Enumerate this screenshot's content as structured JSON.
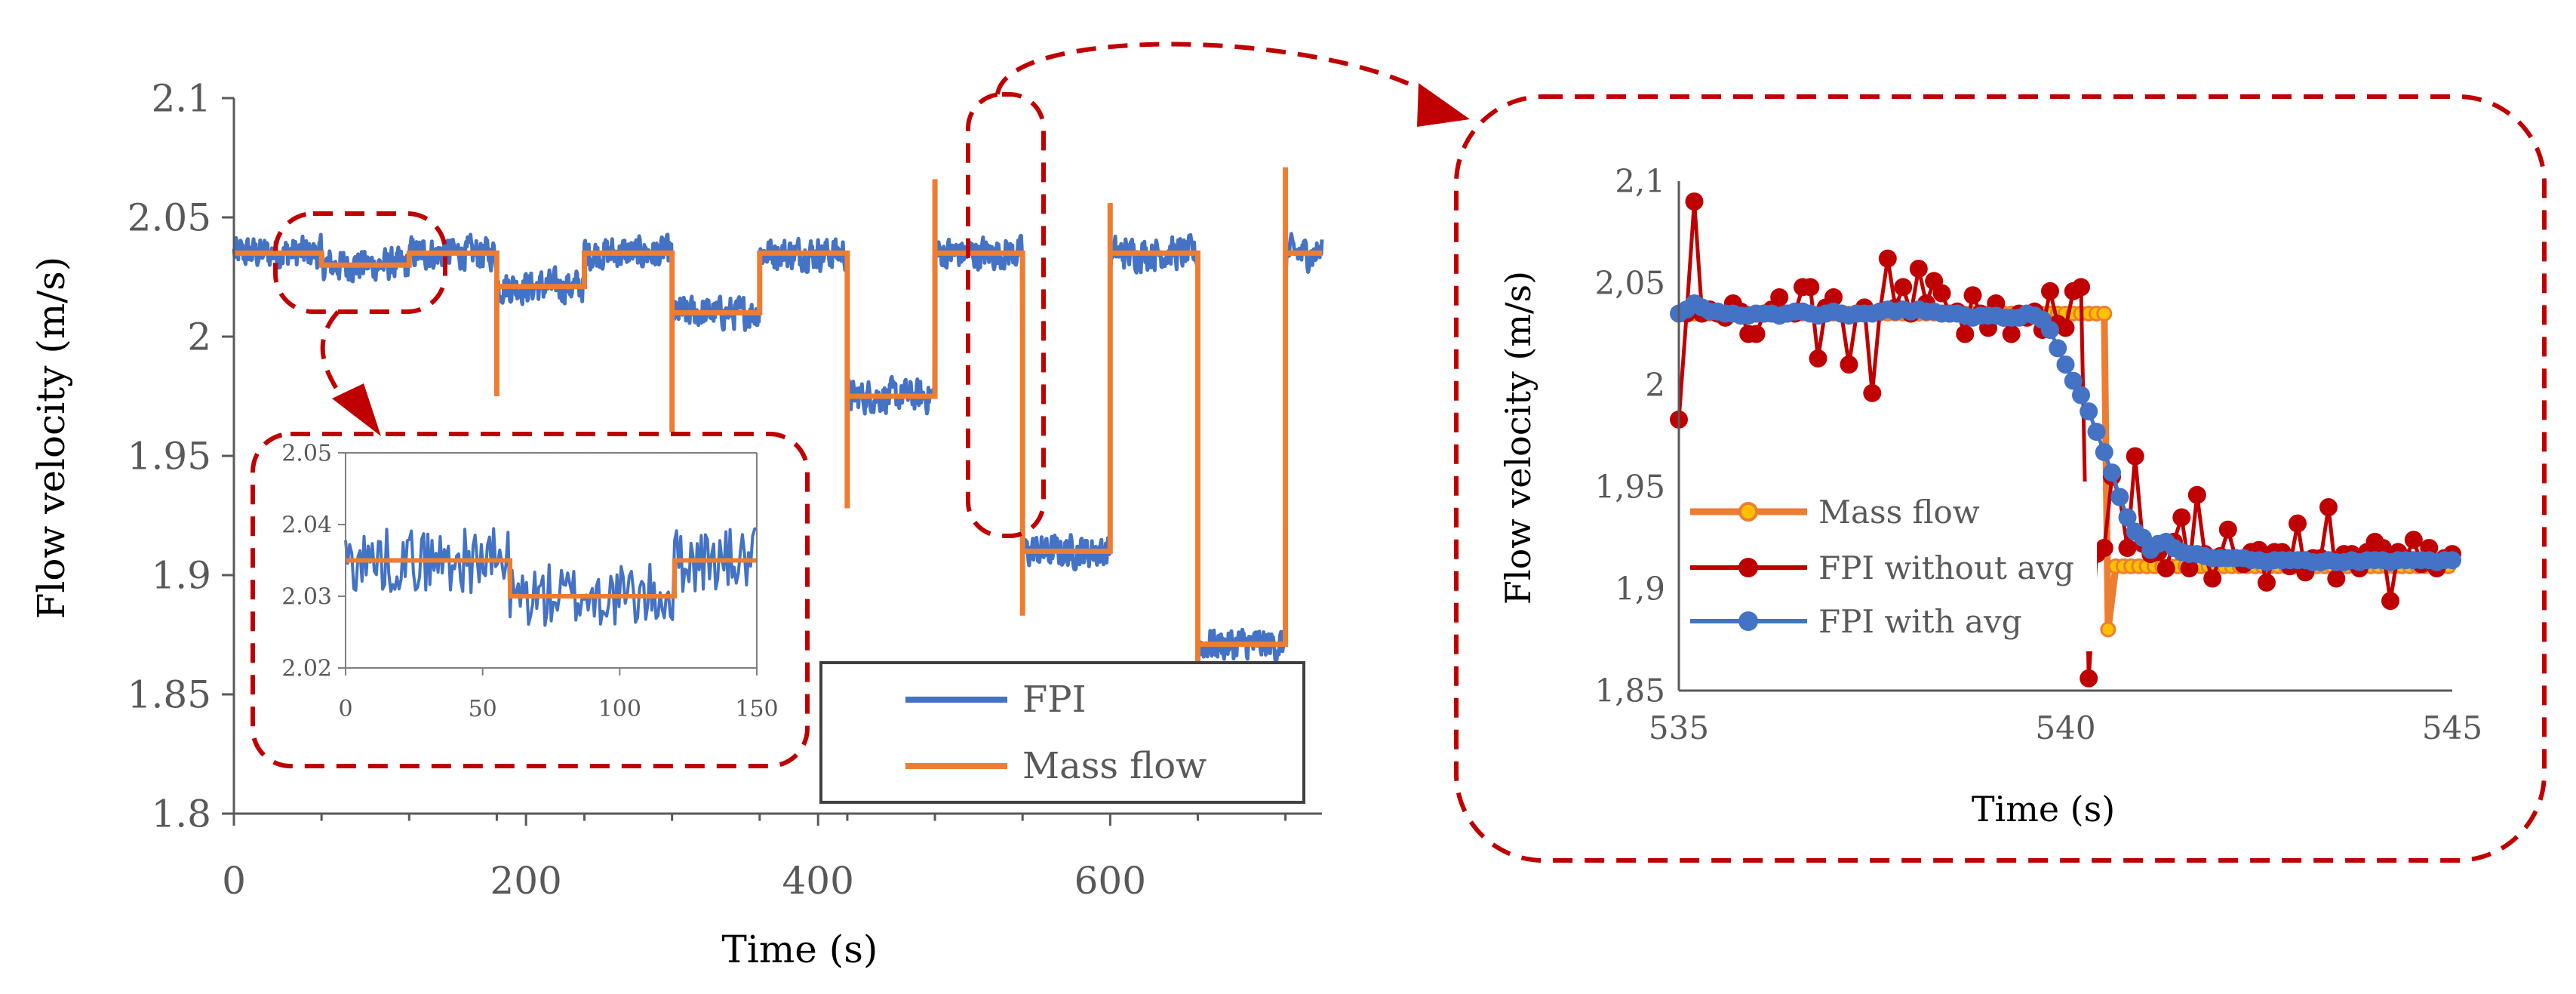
{
  "colors": {
    "fpi": "#4472C4",
    "mass_flow": "#ED7D31",
    "mass_flow_marker_fill": "#FFC000",
    "fpi_without_avg": "#C00000",
    "fpi_with_avg": "#4472C4",
    "callout": "#C00000",
    "axis": "#595959"
  },
  "chart_data": [
    {
      "id": "main",
      "type": "line",
      "title": "",
      "xlabel": "Time (s)",
      "ylabel": "Flow velocity (m/s)",
      "xlim": [
        0,
        745
      ],
      "ylim": [
        1.8,
        2.1
      ],
      "xticks": [
        0,
        200,
        400,
        600
      ],
      "xtick_labels": [
        "0",
        "200",
        "400",
        "600"
      ],
      "yticks": [
        1.8,
        1.85,
        1.9,
        1.95,
        2.0,
        2.05,
        2.1
      ],
      "ytick_labels": [
        "1.8",
        "1.85",
        "1.9",
        "1.95",
        "2",
        "2.05",
        "2.1"
      ],
      "grid": false,
      "legend": {
        "position": "bottom-right",
        "entries": [
          "FPI",
          "Mass flow"
        ]
      },
      "mass_flow_steps": [
        {
          "start": 0,
          "end": 60,
          "value": 2.035
        },
        {
          "start": 60,
          "end": 120,
          "value": 2.03
        },
        {
          "start": 120,
          "end": 180,
          "value": 2.035
        },
        {
          "start": 180,
          "end": 240,
          "value": 2.021
        },
        {
          "start": 240,
          "end": 300,
          "value": 2.035
        },
        {
          "start": 300,
          "end": 360,
          "value": 2.01
        },
        {
          "start": 360,
          "end": 420,
          "value": 2.035
        },
        {
          "start": 420,
          "end": 480,
          "value": 1.975
        },
        {
          "start": 480,
          "end": 540,
          "value": 2.035
        },
        {
          "start": 540,
          "end": 600,
          "value": 1.91
        },
        {
          "start": 600,
          "end": 660,
          "value": 2.035
        },
        {
          "start": 660,
          "end": 720,
          "value": 1.871
        },
        {
          "start": 720,
          "end": 745,
          "value": 2.035
        }
      ],
      "mass_flow_transient_spikes": [
        {
          "time": 180,
          "value": 1.975
        },
        {
          "time": 300,
          "value": 1.96
        },
        {
          "time": 420,
          "value": 1.928
        },
        {
          "time": 480,
          "value": 2.066
        },
        {
          "time": 540,
          "value": 1.883
        },
        {
          "time": 600,
          "value": 2.056
        },
        {
          "time": 660,
          "value": 1.863
        },
        {
          "time": 720,
          "value": 2.071
        }
      ],
      "fpi_noise_amplitude": 0.006
    },
    {
      "id": "inset",
      "type": "line",
      "xlabel": "",
      "ylabel": "",
      "xlim": [
        0,
        150
      ],
      "ylim": [
        2.02,
        2.05
      ],
      "xticks": [
        0,
        50,
        100,
        150
      ],
      "xtick_labels": [
        "0",
        "50",
        "100",
        "150"
      ],
      "yticks": [
        2.02,
        2.03,
        2.04,
        2.05
      ],
      "ytick_labels": [
        "2.02",
        "2.03",
        "2.04",
        "2.05"
      ],
      "mass_flow_steps": [
        {
          "start": 0,
          "end": 60,
          "value": 2.035
        },
        {
          "start": 60,
          "end": 120,
          "value": 2.03
        },
        {
          "start": 120,
          "end": 150,
          "value": 2.035
        }
      ],
      "fpi_noise_amplitude": 0.0045
    },
    {
      "id": "zoom",
      "type": "line",
      "xlabel": "Time (s)",
      "ylabel": "Flow velocity (m/s)",
      "xlim": [
        535,
        545
      ],
      "ylim": [
        1.85,
        2.1
      ],
      "xticks": [
        535,
        540,
        545
      ],
      "xtick_labels": [
        "535",
        "540",
        "545"
      ],
      "yticks": [
        1.85,
        1.9,
        1.95,
        2.0,
        2.05,
        2.1
      ],
      "ytick_labels": [
        "1,85",
        "1,9",
        "1,95",
        "2",
        "2,05",
        "2,1"
      ],
      "grid": false,
      "legend": {
        "position": "bottom-left",
        "entries": [
          "Mass flow",
          "FPI without avg",
          "FPI with avg"
        ]
      },
      "series": [
        {
          "name": "Mass flow",
          "step_time": 540.55,
          "before": 2.035,
          "after": 1.911,
          "dip_time": 540.55,
          "dip_value": 1.88,
          "marker_spacing": 0.1
        },
        {
          "name": "FPI without avg",
          "x": [
            535.0,
            535.1,
            535.2,
            535.3,
            535.4,
            535.5,
            535.6,
            535.7,
            535.8,
            535.9,
            536.0,
            536.1,
            536.2,
            536.3,
            536.4,
            536.5,
            536.6,
            536.7,
            536.8,
            536.9,
            537.0,
            537.1,
            537.2,
            537.3,
            537.4,
            537.5,
            537.6,
            537.7,
            537.8,
            537.9,
            538.0,
            538.1,
            538.2,
            538.3,
            538.4,
            538.5,
            538.6,
            538.7,
            538.8,
            538.9,
            539.0,
            539.1,
            539.2,
            539.3,
            539.4,
            539.5,
            539.6,
            539.7,
            539.8,
            539.9,
            540.0,
            540.1,
            540.2,
            540.3,
            540.4,
            540.5,
            540.6,
            540.7,
            540.8,
            540.9,
            541.0,
            541.1,
            541.2,
            541.3,
            541.4,
            541.5,
            541.6,
            541.7,
            541.8,
            541.9,
            542.0,
            542.1,
            542.2,
            542.3,
            542.4,
            542.5,
            542.6,
            542.7,
            542.8,
            542.9,
            543.0,
            543.1,
            543.2,
            543.3,
            543.4,
            543.5,
            543.6,
            543.7,
            543.8,
            543.9,
            544.0,
            544.1,
            544.2,
            544.3,
            544.4,
            544.5,
            544.6,
            544.7,
            544.8,
            544.9,
            545.0
          ],
          "y": [
            1.983,
            2.035,
            2.09,
            2.035,
            2.037,
            2.035,
            2.033,
            2.04,
            2.036,
            2.025,
            2.025,
            2.035,
            2.037,
            2.043,
            2.035,
            2.035,
            2.048,
            2.048,
            2.013,
            2.038,
            2.043,
            2.035,
            2.01,
            2.035,
            2.038,
            1.996,
            2.036,
            2.062,
            2.038,
            2.048,
            2.035,
            2.057,
            2.04,
            2.051,
            2.045,
            2.035,
            2.036,
            2.025,
            2.044,
            2.035,
            2.028,
            2.04,
            2.033,
            2.025,
            2.035,
            2.033,
            2.036,
            2.027,
            2.046,
            2.03,
            2.028,
            2.046,
            2.048,
            1.856,
            1.917,
            1.92,
            1.955,
            1.945,
            1.92,
            1.965,
            1.922,
            1.917,
            1.918,
            1.91,
            1.923,
            1.935,
            1.91,
            1.946,
            1.917,
            1.905,
            1.916,
            1.929,
            1.915,
            1.912,
            1.918,
            1.919,
            1.903,
            1.918,
            1.918,
            1.911,
            1.932,
            1.908,
            1.915,
            1.915,
            1.94,
            1.905,
            1.917,
            1.917,
            1.91,
            1.918,
            1.923,
            1.92,
            1.894,
            1.918,
            1.915,
            1.924,
            1.912,
            1.92,
            1.91,
            1.915,
            1.917
          ],
          "x_shifted_note": ""
        },
        {
          "name": "FPI with avg",
          "x": [
            535.0,
            535.1,
            535.2,
            535.3,
            535.4,
            535.5,
            535.6,
            535.7,
            535.8,
            535.9,
            536.0,
            536.1,
            536.2,
            536.3,
            536.4,
            536.5,
            536.6,
            536.7,
            536.8,
            536.9,
            537.0,
            537.1,
            537.2,
            537.3,
            537.4,
            537.5,
            537.6,
            537.7,
            537.8,
            537.9,
            538.0,
            538.1,
            538.2,
            538.3,
            538.4,
            538.5,
            538.6,
            538.7,
            538.8,
            538.9,
            539.0,
            539.1,
            539.2,
            539.3,
            539.4,
            539.5,
            539.6,
            539.7,
            539.8,
            539.9,
            540.0,
            540.1,
            540.2,
            540.3,
            540.4,
            540.5,
            540.6,
            540.7,
            540.8,
            540.9,
            541.0,
            541.1,
            541.2,
            541.3,
            541.4,
            541.5,
            541.6,
            541.7,
            541.8,
            541.9,
            542.0,
            542.1,
            542.2,
            542.3,
            542.4,
            542.5,
            542.6,
            542.7,
            542.8,
            542.9,
            543.0,
            543.1,
            543.2,
            543.3,
            543.4,
            543.5,
            543.6,
            543.7,
            543.8,
            543.9,
            544.0,
            544.1,
            544.2,
            544.3,
            544.4,
            544.5,
            544.6,
            544.7,
            544.8,
            544.9,
            545.0
          ],
          "y": [
            2.035,
            2.037,
            2.04,
            2.038,
            2.036,
            2.036,
            2.035,
            2.035,
            2.034,
            2.034,
            2.035,
            2.035,
            2.035,
            2.034,
            2.035,
            2.036,
            2.036,
            2.035,
            2.034,
            2.035,
            2.036,
            2.035,
            2.034,
            2.035,
            2.035,
            2.035,
            2.036,
            2.037,
            2.036,
            2.037,
            2.036,
            2.037,
            2.036,
            2.036,
            2.035,
            2.035,
            2.035,
            2.034,
            2.033,
            2.034,
            2.034,
            2.034,
            2.033,
            2.033,
            2.033,
            2.035,
            2.034,
            2.032,
            2.027,
            2.018,
            2.01,
            2.002,
            1.995,
            1.987,
            1.977,
            1.967,
            1.957,
            1.945,
            1.935,
            1.928,
            1.925,
            1.919,
            1.922,
            1.923,
            1.92,
            1.918,
            1.917,
            1.917,
            1.916,
            1.915,
            1.915,
            1.915,
            1.915,
            1.915,
            1.914,
            1.914,
            1.913,
            1.914,
            1.914,
            1.914,
            1.914,
            1.914,
            1.913,
            1.913,
            1.914,
            1.913,
            1.913,
            1.914,
            1.913,
            1.914,
            1.914,
            1.914,
            1.913,
            1.914,
            1.914,
            1.914,
            1.914,
            1.914,
            1.913,
            1.914,
            1.914
          ]
        }
      ]
    }
  ]
}
